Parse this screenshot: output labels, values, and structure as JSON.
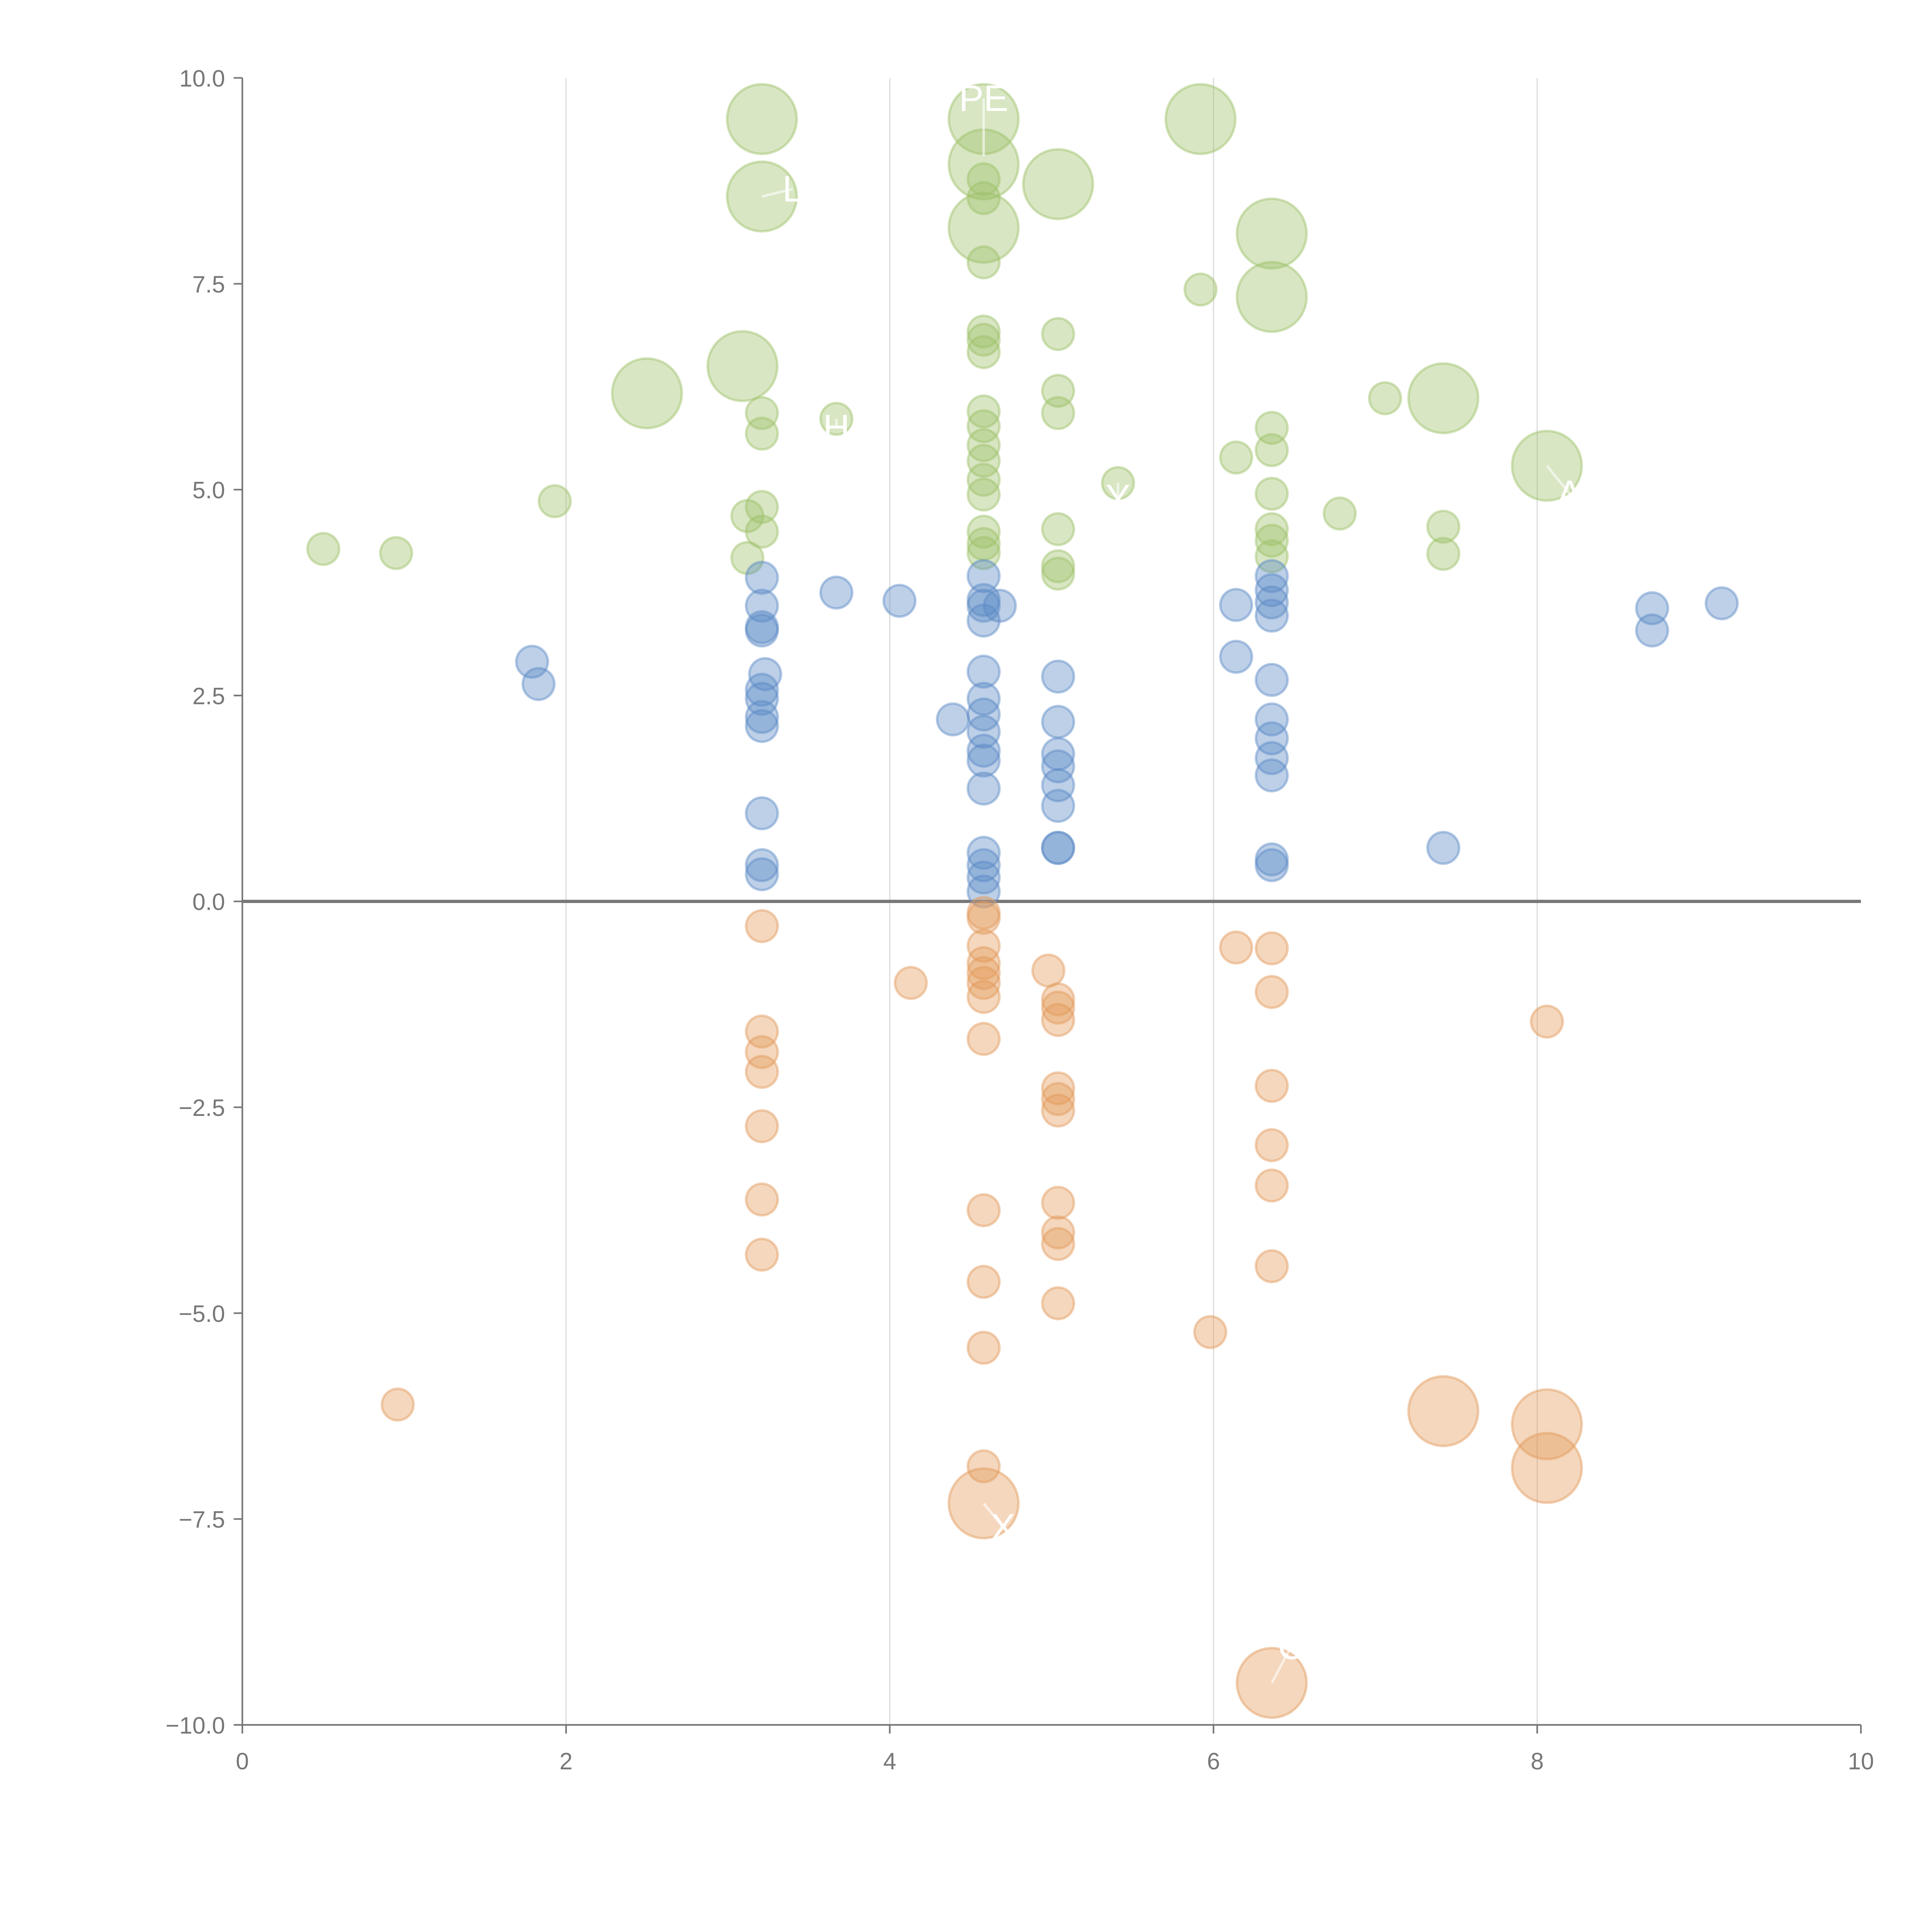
{
  "chart_data": {
    "type": "scatter",
    "title": "",
    "xlabel": "",
    "ylabel": "",
    "xlim": [
      0,
      10
    ],
    "ylim": [
      -10,
      10
    ],
    "grid": "vertical",
    "x_ticks": [
      "0",
      "2",
      "4",
      "6",
      "8",
      "10"
    ],
    "y_ticks": [
      "10.0",
      "7.5",
      "5.0",
      "2.5",
      "0.0",
      "−2.5",
      "−5.0",
      "−7.5",
      "−10.0"
    ],
    "x_tick_values": [
      0,
      2,
      4,
      6,
      8,
      10
    ],
    "y_tick_values": [
      10,
      7.5,
      5,
      2.5,
      0,
      -2.5,
      -5,
      -7.5,
      -10
    ],
    "point_format": "[x, y, size]",
    "series": [
      {
        "name": "green",
        "color": "#9dc068",
        "points": [
          [
            3.21,
            9.5,
            2.2
          ],
          [
            3.21,
            8.56,
            2.2
          ],
          [
            4.58,
            9.5,
            2.2
          ],
          [
            4.58,
            8.95,
            2.2
          ],
          [
            4.58,
            8.18,
            2.2
          ],
          [
            5.04,
            8.71,
            2.2
          ],
          [
            5.92,
            9.5,
            2.2
          ],
          [
            6.36,
            8.11,
            2.2
          ],
          [
            6.36,
            7.34,
            2.2
          ],
          [
            3.09,
            6.5,
            2.2
          ],
          [
            2.5,
            6.17,
            2.2
          ],
          [
            7.42,
            6.11,
            2.2
          ],
          [
            8.06,
            5.29,
            2.2
          ],
          [
            0.5,
            4.28,
            1
          ],
          [
            0.95,
            4.23,
            1
          ],
          [
            1.93,
            4.86,
            1
          ],
          [
            3.21,
            5.93,
            1
          ],
          [
            3.21,
            5.68,
            1
          ],
          [
            3.21,
            4.79,
            1
          ],
          [
            3.12,
            4.68,
            1
          ],
          [
            3.21,
            4.49,
            1
          ],
          [
            3.12,
            4.17,
            1
          ],
          [
            3.67,
            5.86,
            1
          ],
          [
            4.58,
            8.77,
            1
          ],
          [
            4.58,
            8.54,
            1
          ],
          [
            4.58,
            7.76,
            1
          ],
          [
            4.58,
            6.92,
            1
          ],
          [
            4.58,
            6.82,
            1
          ],
          [
            4.58,
            6.67,
            1
          ],
          [
            4.58,
            5.95,
            1
          ],
          [
            4.58,
            5.77,
            1
          ],
          [
            4.58,
            5.54,
            1
          ],
          [
            4.58,
            5.35,
            1
          ],
          [
            4.58,
            5.12,
            1
          ],
          [
            4.58,
            4.94,
            1
          ],
          [
            4.58,
            4.49,
            1
          ],
          [
            4.58,
            4.34,
            1
          ],
          [
            4.58,
            4.23,
            1
          ],
          [
            5.04,
            6.89,
            1
          ],
          [
            5.04,
            6.2,
            1
          ],
          [
            5.04,
            5.93,
            1
          ],
          [
            5.04,
            4.52,
            1
          ],
          [
            5.04,
            4.07,
            1
          ],
          [
            5.04,
            3.98,
            1
          ],
          [
            5.41,
            5.08,
            1
          ],
          [
            5.92,
            7.43,
            1
          ],
          [
            6.14,
            5.39,
            1
          ],
          [
            6.36,
            5.75,
            1
          ],
          [
            6.36,
            5.48,
            1
          ],
          [
            6.36,
            4.95,
            1
          ],
          [
            6.36,
            4.52,
            1
          ],
          [
            6.36,
            4.38,
            1
          ],
          [
            6.36,
            4.19,
            1
          ],
          [
            6.78,
            4.71,
            1
          ],
          [
            7.06,
            6.11,
            1
          ],
          [
            7.42,
            4.55,
            1
          ],
          [
            7.42,
            4.22,
            1
          ]
        ]
      },
      {
        "name": "blue",
        "color": "#5b8ac6",
        "points": [
          [
            1.79,
            2.91,
            1
          ],
          [
            1.83,
            2.64,
            1
          ],
          [
            3.21,
            3.93,
            1
          ],
          [
            3.21,
            3.59,
            1
          ],
          [
            3.21,
            3.33,
            1
          ],
          [
            3.21,
            3.29,
            1
          ],
          [
            3.23,
            2.76,
            1
          ],
          [
            3.21,
            2.57,
            1
          ],
          [
            3.21,
            2.46,
            1
          ],
          [
            3.21,
            2.24,
            1
          ],
          [
            3.21,
            2.13,
            1
          ],
          [
            3.21,
            1.07,
            1
          ],
          [
            3.21,
            0.44,
            1
          ],
          [
            3.21,
            0.33,
            1
          ],
          [
            3.67,
            3.75,
            1
          ],
          [
            4.06,
            3.65,
            1
          ],
          [
            4.39,
            2.21,
            1
          ],
          [
            4.58,
            3.95,
            1
          ],
          [
            4.58,
            3.66,
            1
          ],
          [
            4.58,
            3.59,
            1
          ],
          [
            4.58,
            3.41,
            1
          ],
          [
            4.68,
            3.59,
            1
          ],
          [
            4.58,
            2.79,
            1
          ],
          [
            4.58,
            2.46,
            1
          ],
          [
            4.58,
            2.27,
            1
          ],
          [
            4.58,
            2.06,
            1
          ],
          [
            4.58,
            1.83,
            1
          ],
          [
            4.58,
            1.71,
            1
          ],
          [
            4.58,
            1.37,
            1
          ],
          [
            4.58,
            0.59,
            1
          ],
          [
            4.58,
            0.44,
            1
          ],
          [
            4.58,
            0.29,
            1
          ],
          [
            4.58,
            0.12,
            1
          ],
          [
            5.04,
            2.73,
            1
          ],
          [
            5.04,
            2.18,
            1
          ],
          [
            5.04,
            1.79,
            1
          ],
          [
            5.04,
            1.64,
            1
          ],
          [
            5.04,
            1.41,
            1
          ],
          [
            5.04,
            1.16,
            1
          ],
          [
            5.04,
            0.65,
            1
          ],
          [
            5.04,
            0.65,
            1
          ],
          [
            6.14,
            3.6,
            1
          ],
          [
            6.14,
            2.97,
            1
          ],
          [
            6.36,
            3.95,
            1
          ],
          [
            6.36,
            3.78,
            1
          ],
          [
            6.36,
            3.63,
            1
          ],
          [
            6.36,
            3.47,
            1
          ],
          [
            6.36,
            2.69,
            1
          ],
          [
            6.36,
            2.21,
            1
          ],
          [
            6.36,
            1.98,
            1
          ],
          [
            6.36,
            1.74,
            1
          ],
          [
            6.36,
            1.53,
            1
          ],
          [
            6.36,
            0.51,
            1
          ],
          [
            6.36,
            0.44,
            1
          ],
          [
            7.42,
            0.65,
            1
          ],
          [
            8.71,
            3.56,
            1
          ],
          [
            8.71,
            3.29,
            1
          ],
          [
            9.14,
            3.62,
            1
          ]
        ]
      },
      {
        "name": "orange",
        "color": "#e39a5a",
        "points": [
          [
            3.21,
            -0.3,
            1
          ],
          [
            3.21,
            -1.58,
            1
          ],
          [
            3.21,
            -1.83,
            1
          ],
          [
            3.21,
            -2.07,
            1
          ],
          [
            3.21,
            -2.73,
            1
          ],
          [
            3.21,
            -3.62,
            1
          ],
          [
            3.21,
            -4.29,
            1
          ],
          [
            0.96,
            -6.11,
            1
          ],
          [
            4.13,
            -0.99,
            1
          ],
          [
            4.58,
            -0.14,
            1
          ],
          [
            4.58,
            -0.2,
            1
          ],
          [
            4.58,
            -0.54,
            1
          ],
          [
            4.58,
            -0.75,
            1
          ],
          [
            4.58,
            -0.87,
            1
          ],
          [
            4.58,
            -0.99,
            1
          ],
          [
            4.58,
            -1.16,
            1
          ],
          [
            4.58,
            -1.67,
            1
          ],
          [
            4.58,
            -3.75,
            1
          ],
          [
            4.58,
            -4.62,
            1
          ],
          [
            4.58,
            -5.42,
            1
          ],
          [
            4.58,
            -6.86,
            1
          ],
          [
            4.98,
            -0.84,
            1
          ],
          [
            5.04,
            -1.19,
            1
          ],
          [
            5.04,
            -1.29,
            1
          ],
          [
            5.04,
            -1.44,
            1
          ],
          [
            5.04,
            -2.27,
            1
          ],
          [
            5.04,
            -2.4,
            1
          ],
          [
            5.04,
            -2.54,
            1
          ],
          [
            5.04,
            -3.66,
            1
          ],
          [
            5.04,
            -4.02,
            1
          ],
          [
            5.04,
            -4.16,
            1
          ],
          [
            5.04,
            -4.88,
            1
          ],
          [
            5.98,
            -5.23,
            1
          ],
          [
            6.14,
            -0.56,
            1
          ],
          [
            6.36,
            -0.57,
            1
          ],
          [
            6.36,
            -1.1,
            1
          ],
          [
            6.36,
            -2.24,
            1
          ],
          [
            6.36,
            -2.96,
            1
          ],
          [
            6.36,
            -3.45,
            1
          ],
          [
            6.36,
            -4.43,
            1
          ],
          [
            8.06,
            -1.46,
            1
          ],
          [
            4.58,
            -7.31,
            2.2
          ],
          [
            7.42,
            -6.19,
            2.2
          ],
          [
            8.06,
            -6.35,
            2.2
          ],
          [
            8.06,
            -6.88,
            2.2
          ],
          [
            6.36,
            -9.49,
            2.2
          ]
        ]
      }
    ],
    "annotations": [
      {
        "text": "PE",
        "x": 4.58,
        "y": 9.75,
        "px": 4.58,
        "py": 9.05
      },
      {
        "text": "L",
        "x": 3.4,
        "y": 8.65,
        "px": 3.21,
        "py": 8.56
      },
      {
        "text": "H",
        "x": 3.67,
        "y": 5.75,
        "px": 3.67,
        "py": 5.86
      },
      {
        "text": "Y",
        "x": 5.41,
        "y": 4.9,
        "px": 5.41,
        "py": 5.08
      },
      {
        "text": "A",
        "x": 8.2,
        "y": 4.95,
        "px": 8.06,
        "py": 5.29
      },
      {
        "text": "X",
        "x": 4.7,
        "y": -7.6,
        "px": 4.58,
        "py": -7.31
      },
      {
        "text": "C",
        "x": 6.48,
        "y": -9.05,
        "px": 6.36,
        "py": -9.49
      }
    ]
  }
}
